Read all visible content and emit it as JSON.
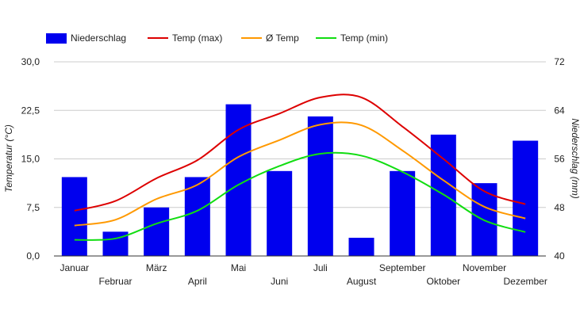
{
  "chart_data": {
    "type": "bar",
    "categories": [
      "Januar",
      "Februar",
      "März",
      "April",
      "Mai",
      "Juni",
      "Juli",
      "August",
      "September",
      "Oktober",
      "November",
      "Dezember"
    ],
    "bar_series": {
      "name": "Niederschlag",
      "axis": "right",
      "color": "#0000ee",
      "values": [
        53,
        44,
        48,
        53,
        65,
        54,
        63,
        43,
        54,
        60,
        52,
        59
      ]
    },
    "line_series": [
      {
        "name": "Temp (max)",
        "axis": "left",
        "color": "#dd0000",
        "values": [
          7.0,
          8.5,
          12.0,
          14.8,
          19.5,
          22.0,
          24.5,
          24.5,
          20.0,
          15.0,
          10.0,
          8.0
        ]
      },
      {
        "name": "Ø Temp",
        "axis": "left",
        "color": "#ff9900",
        "values": [
          4.7,
          5.6,
          8.8,
          11.0,
          15.3,
          17.9,
          20.3,
          20.2,
          16.3,
          11.7,
          7.6,
          5.8
        ]
      },
      {
        "name": "Temp (min)",
        "axis": "left",
        "color": "#11dd11",
        "values": [
          2.5,
          2.7,
          5.0,
          7.0,
          11.0,
          13.9,
          15.8,
          15.5,
          13.0,
          9.5,
          5.5,
          3.7
        ]
      }
    ],
    "ylabel_left": "Temperatur (°C)",
    "ylabel_right": "Niederschlag (mm)",
    "ylim_left": [
      0,
      30
    ],
    "ylim_right": [
      40,
      72
    ],
    "yticks_left": [
      "0,0",
      "7,5",
      "15,0",
      "22,5",
      "30,0"
    ],
    "yticks_right": [
      "40",
      "48",
      "56",
      "64",
      "72"
    ],
    "grid": true,
    "legend_position": "top-left"
  }
}
